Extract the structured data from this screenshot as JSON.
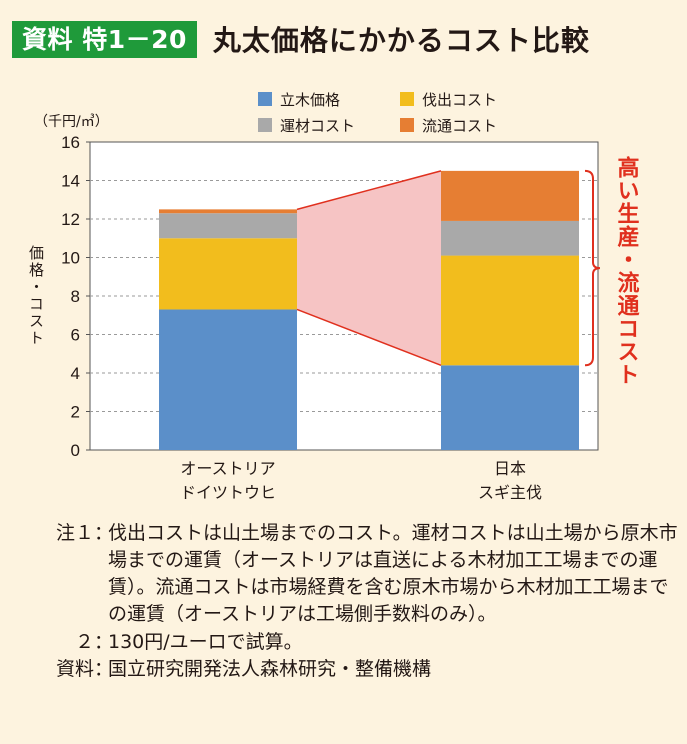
{
  "header": {
    "badge": "資料 特1－20",
    "title": "丸太価格にかかるコスト比較"
  },
  "chart_data": {
    "type": "bar",
    "stacked": true,
    "unit_label": "（千円/㎥）",
    "ylabel": "価格・コスト",
    "ylim": [
      0,
      16
    ],
    "yticks": [
      0,
      2,
      4,
      6,
      8,
      10,
      12,
      14,
      16
    ],
    "grid": true,
    "legend_position": "top",
    "categories": [
      [
        "オーストリア",
        "ドイツトウヒ"
      ],
      [
        "日本",
        "スギ主伐"
      ]
    ],
    "series": [
      {
        "name": "立木価格",
        "color": "#5b8fc9",
        "values": [
          7.3,
          4.4
        ]
      },
      {
        "name": "伐出コスト",
        "color": "#f2bd1d",
        "values": [
          3.7,
          5.7
        ]
      },
      {
        "name": "運材コスト",
        "color": "#a9a9a9",
        "values": [
          1.3,
          1.8
        ]
      },
      {
        "name": "流通コスト",
        "color": "#e67e33",
        "values": [
          0.2,
          2.6
        ]
      }
    ],
    "connector_color": "#f6c4c4",
    "annotation": {
      "text": "高い生産・流通コスト",
      "color": "#e0301e"
    }
  },
  "notes": [
    {
      "key": "注１",
      "sep": "：",
      "text": "伐出コストは山土場までのコスト。運材コストは山土場から原木市場までの運賃（オーストリアは直送による木材加工工場までの運賃）。流通コストは市場経費を含む原木市場から木材加工工場までの運賃（オーストリアは工場側手数料のみ）。"
    },
    {
      "key": "２",
      "sep": "：",
      "text": "130円/ユーロで試算。"
    },
    {
      "key": "資料",
      "sep": "：",
      "text": "国立研究開発法人森林研究・整備機構"
    }
  ]
}
